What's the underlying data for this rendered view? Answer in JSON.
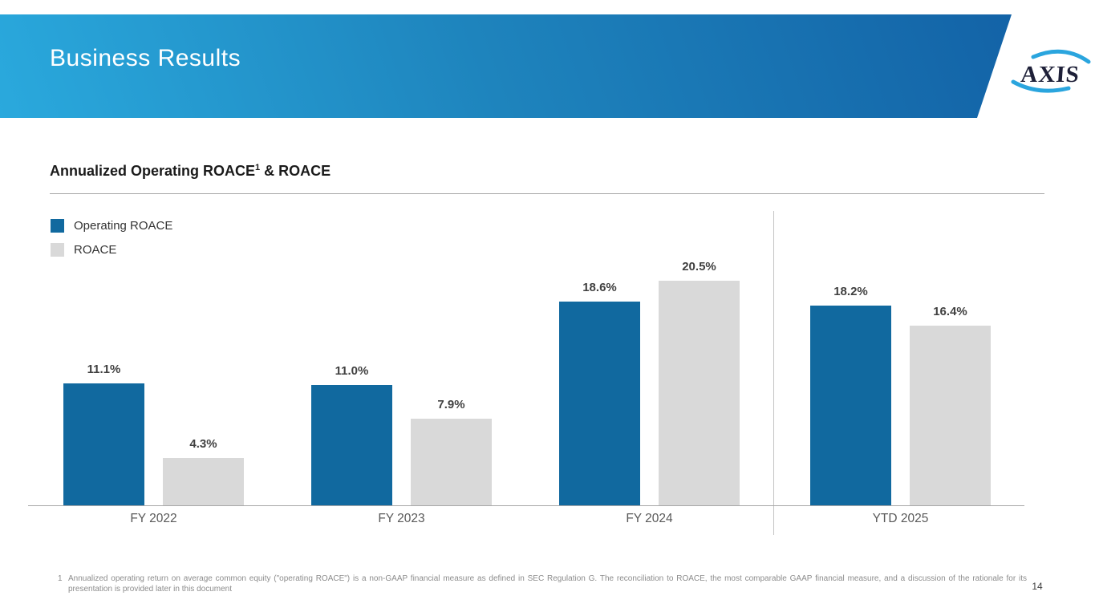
{
  "slide": {
    "header": {
      "title": "Business Results",
      "logo_text": "AXIS"
    },
    "section": {
      "title": "Annualized Operating ROACE",
      "title_superscript": "1",
      "title_suffix": " & ROACE"
    },
    "legend": [
      {
        "label": "Operating ROACE",
        "color": "#11699F"
      },
      {
        "label": "ROACE",
        "color": "#D9D9D9"
      }
    ],
    "footnote": {
      "number": "1",
      "text": "Annualized operating return on average common equity (\"operating ROACE\") is a non-GAAP financial measure as defined in SEC Regulation G. The reconciliation to ROACE, the most comparable GAAP financial measure, and a discussion of the rationale for its presentation is provided later in this document"
    },
    "page_number": "14"
  },
  "chart_data": {
    "type": "bar",
    "title": "Annualized Operating ROACE & ROACE",
    "categories": [
      "FY 2022",
      "FY 2023",
      "FY 2024",
      "YTD 2025"
    ],
    "series": [
      {
        "name": "Operating ROACE",
        "color": "#11699F",
        "values": [
          11.1,
          11.0,
          18.6,
          18.2
        ],
        "labels": [
          "11.1%",
          "11.0%",
          "18.6%",
          "18.2%"
        ]
      },
      {
        "name": "ROACE",
        "color": "#D9D9D9",
        "values": [
          4.3,
          7.9,
          20.5,
          16.4
        ],
        "labels": [
          "4.3%",
          "7.9%",
          "20.5%",
          "16.4%"
        ]
      }
    ],
    "xlabel": "",
    "ylabel": "",
    "ylim": [
      0,
      22
    ],
    "grid": false,
    "legend_position": "top-left",
    "value_labels_shown": true,
    "separator_before_category": "YTD 2025"
  }
}
